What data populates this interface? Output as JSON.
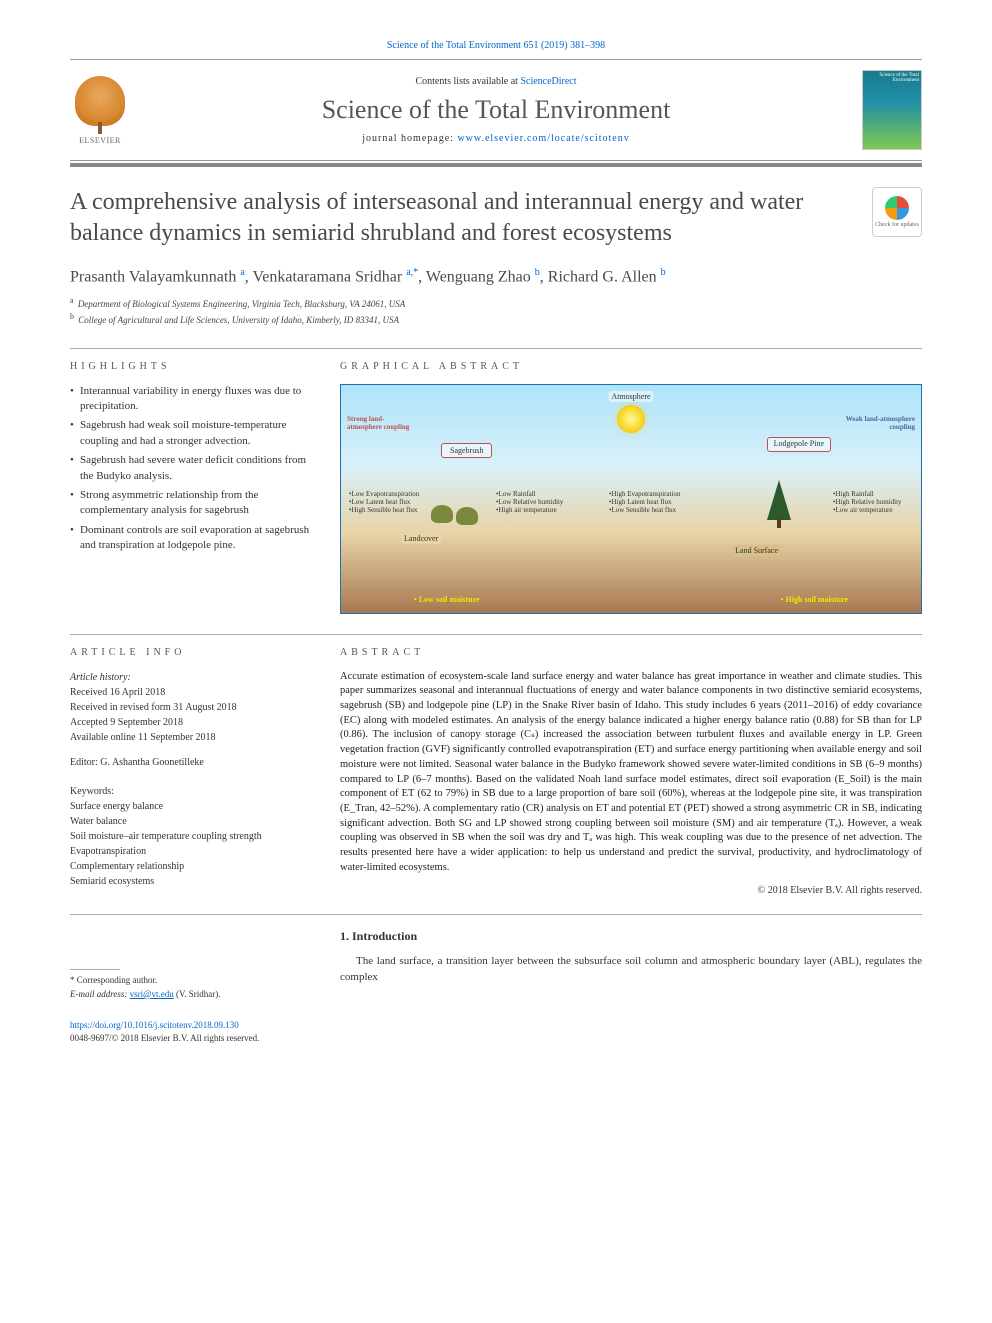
{
  "top_citation": "Science of the Total Environment 651 (2019) 381–398",
  "header": {
    "contents_prefix": "Contents lists available at ",
    "contents_link": "ScienceDirect",
    "journal_name": "Science of the Total Environment",
    "homepage_prefix": "journal homepage: ",
    "homepage_link": "www.elsevier.com/locate/scitotenv",
    "publisher": "ELSEVIER",
    "cover_text": "Science of the Total Environment"
  },
  "updates_badge": "Check for updates",
  "article": {
    "title": "A comprehensive analysis of interseasonal and interannual energy and water balance dynamics in semiarid shrubland and forest ecosystems",
    "authors_html": "Prasanth Valayamkunnath <sup>a</sup>, Venkataramana Sridhar <sup>a,*</sup>, Wenguang Zhao <sup>b</sup>, Richard G. Allen <sup>b</sup>",
    "affiliations": [
      {
        "sup": "a",
        "text": "Department of Biological Systems Engineering, Virginia Tech, Blacksburg, VA 24061, USA"
      },
      {
        "sup": "b",
        "text": "College of Agricultural and Life Sciences, University of Idaho, Kimberly, ID 83341, USA"
      }
    ]
  },
  "highlights": {
    "label": "HIGHLIGHTS",
    "items": [
      "Interannual variability in energy fluxes was due to precipitation.",
      "Sagebrush had weak soil moisture-temperature coupling and had a stronger advection.",
      "Sagebrush had severe water deficit conditions from the Budyko analysis.",
      "Strong asymmetric relationship from the complementary analysis for sagebrush",
      "Dominant controls are soil evaporation at sagebrush and transpiration at lodgepole pine."
    ]
  },
  "graphical_abstract": {
    "label": "GRAPHICAL ABSTRACT",
    "labels": {
      "atmosphere": "Atmosphere",
      "sagebrush": "Sagebrush",
      "lodgepole": "Lodgepole Pine",
      "landcover": "Landcover",
      "landsurface": "Land Surface",
      "strong_coupling": "Strong land-atmosphere coupling",
      "weak_coupling": "Weak land-atmosphere coupling",
      "left_box": "•Low Evapotranspiration\n•Low Latent heat flux\n•High Sensible heat flux",
      "mid_box": "•Low Rainfall\n•Low Relative humidity\n•High air temperature",
      "right_mid_box": "•High Evapotranspiration\n•High Latent heat flux\n•Low Sensible heat flux",
      "right_box": "•High Rainfall\n•High Relative humidity\n•Low air temperature",
      "low_soil": "• Low soil moisture",
      "high_soil": "• High soil moisture"
    },
    "colors": {
      "sky_top": "#aee4f9",
      "sky_bottom": "#d8f0fa",
      "ground_top": "#e8d4a8",
      "ground_bottom": "#a87850",
      "border": "#2070b0",
      "arrow": "#c0504d",
      "sun": "#f9d423",
      "tree": "#2d5a2d",
      "shrub": "#7a8a3a"
    }
  },
  "article_info": {
    "label": "ARTICLE INFO",
    "history_label": "Article history:",
    "history": [
      "Received 16 April 2018",
      "Received in revised form 31 August 2018",
      "Accepted 9 September 2018",
      "Available online 11 September 2018"
    ],
    "editor": "Editor: G. Ashantha Goonetilleke",
    "keywords_label": "Keywords:",
    "keywords": [
      "Surface energy balance",
      "Water balance",
      "Soil moisture–air temperature coupling strength",
      "Evapotranspiration",
      "Complementary relationship",
      "Semiarid ecosystems"
    ]
  },
  "abstract": {
    "label": "ABSTRACT",
    "text": "Accurate estimation of ecosystem-scale land surface energy and water balance has great importance in weather and climate studies. This paper summarizes seasonal and interannual fluctuations of energy and water balance components in two distinctive semiarid ecosystems, sagebrush (SB) and lodgepole pine (LP) in the Snake River basin of Idaho. This study includes 6 years (2011–2016) of eddy covariance (EC) along with modeled estimates. An analysis of the energy balance indicated a higher energy balance ratio (0.88) for SB than for LP (0.86). The inclusion of canopy storage (Cₛ) increased the association between turbulent fluxes and available energy in LP. Green vegetation fraction (GVF) significantly controlled evapotranspiration (ET) and surface energy partitioning when available energy and soil moisture were not limited. Seasonal water balance in the Budyko framework showed severe water-limited conditions in SB (6–9 months) compared to LP (6–7 months). Based on the validated Noah land surface model estimates, direct soil evaporation (E_Soil) is the main component of ET (62 to 79%) in SB due to a large proportion of bare soil (60%), whereas at the lodgepole pine site, it was transpiration (E_Tran, 42–52%). A complementary ratio (CR) analysis on ET and potential ET (PET) showed a strong asymmetric CR in SB, indicating significant advection. Both SG and LP showed strong coupling between soil moisture (SM) and air temperature (Tₐ). However, a weak coupling was observed in SB when the soil was dry and Tₐ was high. This weak coupling was due to the presence of net advection. The results presented here have a wider application: to help us understand and predict the survival, productivity, and hydroclimatology of water-limited ecosystems.",
    "copyright": "© 2018 Elsevier B.V. All rights reserved."
  },
  "introduction": {
    "heading": "1. Introduction",
    "text": "The land surface, a transition layer between the subsurface soil column and atmospheric boundary layer (ABL), regulates the complex"
  },
  "corresponding": {
    "star": "* Corresponding author.",
    "email_label": "E-mail address:",
    "email": "vsri@vt.edu",
    "email_name": "(V. Sridhar)."
  },
  "footer": {
    "doi": "https://doi.org/10.1016/j.scitotenv.2018.09.130",
    "issn_line": "0048-9697/© 2018 Elsevier B.V. All rights reserved."
  }
}
